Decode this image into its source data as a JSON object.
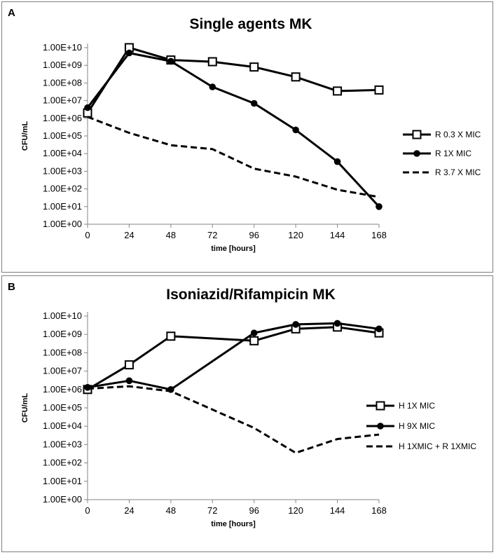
{
  "chart_data": [
    {
      "panel": "A",
      "type": "line",
      "title": "Single agents MK",
      "xlabel": "time [hours]",
      "ylabel": "CFU/mL",
      "y_scale": "log",
      "ylim": [
        1,
        10000000000
      ],
      "y_ticks": [
        1,
        10,
        100,
        1000,
        10000,
        100000,
        1000000,
        10000000,
        100000000,
        1000000000,
        10000000000
      ],
      "y_tick_labels": [
        "1.00E+00",
        "1.00E+01",
        "1.00E+02",
        "1.00E+03",
        "1.00E+04",
        "1.00E+05",
        "1.00E+06",
        "1.00E+07",
        "1.00E+08",
        "1.00E+09",
        "1.00E+10"
      ],
      "x_ticks": [
        0,
        24,
        48,
        72,
        96,
        120,
        144,
        168
      ],
      "xlim": [
        0,
        168
      ],
      "legend_position": "right",
      "series": [
        {
          "name": "R 0.3 X MIC",
          "marker": "square-open",
          "dash": "solid",
          "x": [
            0,
            24,
            48,
            72,
            96,
            120,
            144,
            168
          ],
          "values": [
            2000000,
            10000000000,
            2000000000,
            1600000000,
            800000000,
            220000000,
            35000000,
            40000000
          ]
        },
        {
          "name": "R 1X MIC",
          "marker": "circle-filled",
          "dash": "solid",
          "x": [
            0,
            24,
            48,
            72,
            96,
            120,
            144,
            168
          ],
          "values": [
            4000000,
            5000000000,
            1700000000,
            60000000,
            7000000,
            220000,
            3500,
            10
          ]
        },
        {
          "name": "R 3.7 X MIC",
          "marker": "none",
          "dash": "dashed",
          "x": [
            0,
            24,
            48,
            72,
            96,
            120,
            144,
            168
          ],
          "values": [
            1200000,
            150000,
            30000,
            18000,
            1400,
            500,
            90,
            35
          ]
        }
      ]
    },
    {
      "panel": "B",
      "type": "line",
      "title": "Isoniazid/Rifampicin MK",
      "xlabel": "time [hours]",
      "ylabel": "CFU/mL",
      "y_scale": "log",
      "ylim": [
        1,
        10000000000
      ],
      "y_ticks": [
        1,
        10,
        100,
        1000,
        10000,
        100000,
        1000000,
        10000000,
        100000000,
        1000000000,
        10000000000
      ],
      "y_tick_labels": [
        "1.00E+00",
        "1.00E+01",
        "1.00E+02",
        "1.00E+03",
        "1.00E+04",
        "1.00E+05",
        "1.00E+06",
        "1.00E+07",
        "1.00E+08",
        "1.00E+09",
        "1.00E+10"
      ],
      "x_ticks": [
        0,
        24,
        48,
        72,
        96,
        120,
        144,
        168
      ],
      "xlim": [
        0,
        168
      ],
      "legend_position": "right",
      "series": [
        {
          "name": "H 1X MIC",
          "marker": "square-open",
          "dash": "solid",
          "x": [
            0,
            24,
            48,
            96,
            120,
            144,
            168
          ],
          "values": [
            1000000,
            22000000,
            800000000,
            450000000,
            2000000000,
            2500000000,
            1200000000
          ]
        },
        {
          "name": "H 9X MIC",
          "marker": "circle-filled",
          "dash": "solid",
          "x": [
            0,
            24,
            48,
            96,
            120,
            144,
            168
          ],
          "values": [
            1300000,
            3000000,
            1000000,
            1200000000,
            3500000000,
            4000000000,
            2000000000
          ]
        },
        {
          "name": "H 1XMIC + R 1XMIC",
          "marker": "none",
          "dash": "dashed",
          "x": [
            0,
            24,
            48,
            96,
            120,
            144,
            168
          ],
          "values": [
            1100000,
            1500000,
            800000,
            8000,
            350,
            2000,
            3500
          ]
        }
      ]
    }
  ]
}
